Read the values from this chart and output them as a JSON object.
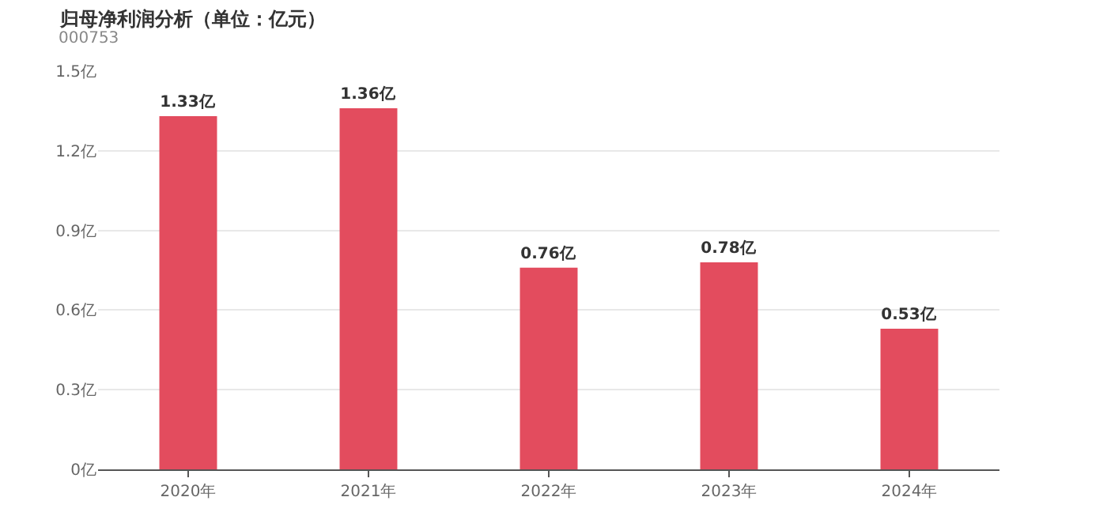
{
  "chart_data": {
    "type": "bar",
    "title": "归母净利润分析（单位：亿元）",
    "subtitle": "000753",
    "categories": [
      "2020年",
      "2021年",
      "2022年",
      "2023年",
      "2024年"
    ],
    "values": [
      1.33,
      1.36,
      0.76,
      0.78,
      0.53
    ],
    "value_labels": [
      "1.33亿",
      "1.36亿",
      "0.76亿",
      "0.78亿",
      "0.53亿"
    ],
    "color": "#e34c5e",
    "ylim": [
      0,
      1.5
    ],
    "yticks": [
      {
        "value": 0,
        "label": "0亿"
      },
      {
        "value": 0.3,
        "label": "0.3亿"
      },
      {
        "value": 0.6,
        "label": "0.6亿"
      },
      {
        "value": 0.9,
        "label": "0.9亿"
      },
      {
        "value": 1.2,
        "label": "1.2亿"
      },
      {
        "value": 1.5,
        "label": "1.5亿"
      }
    ],
    "grid": "y",
    "legend": false
  }
}
